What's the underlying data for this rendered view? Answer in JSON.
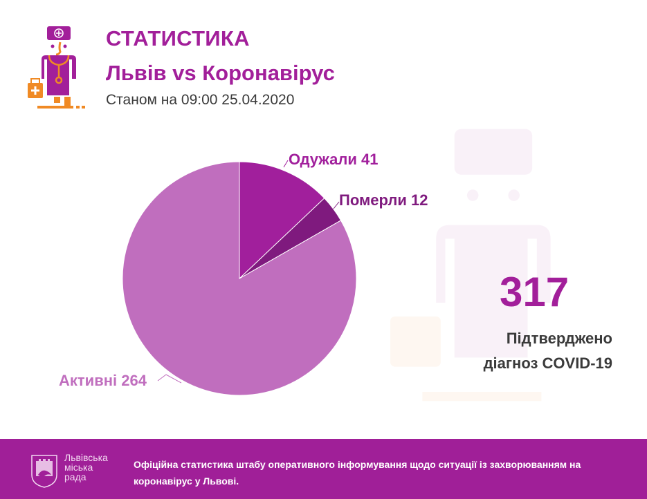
{
  "header": {
    "title": "СТАТИСТИКА",
    "subtitle": "Львів vs Коронавірус",
    "date": "Станом на 09:00 25.04.2020",
    "logo_icon": "doctor-icon"
  },
  "chart_labels": {
    "recovered": "Одужали 41",
    "died": "Померли 12",
    "active": "Активні 264"
  },
  "summary": {
    "total": "317",
    "caption_line1": "Підтверджено",
    "caption_line2": "діагноз COVID-19"
  },
  "footer": {
    "council_line1": "Львівська",
    "council_line2": "міська",
    "council_line3": "рада",
    "text_line1": "Офіційна статистика штабу оперативного інформування щодо ситуації із захворюванням на",
    "text_line2": "коронавірус у Львові.",
    "coat_icon": "lviv-coat-of-arms-icon"
  },
  "colors": {
    "accent": "#a21f9a",
    "recovered": "#a11f9c",
    "died": "#7f1a7e",
    "active": "#c06ebe",
    "footer_bg": "#a01f98",
    "icon_orange": "#f08a24"
  },
  "chart_data": {
    "type": "pie",
    "title": "Львів vs Коронавірус",
    "subtitle": "Станом на 09:00 25.04.2020",
    "categories": [
      "Одужали",
      "Померли",
      "Активні"
    ],
    "values": [
      41,
      12,
      264
    ],
    "total": 317,
    "colors": [
      "#a11f9c",
      "#7f1a7e",
      "#c06ebe"
    ],
    "start_angle_deg": 0,
    "direction": "clockwise",
    "legend": "none (direct labels)"
  }
}
